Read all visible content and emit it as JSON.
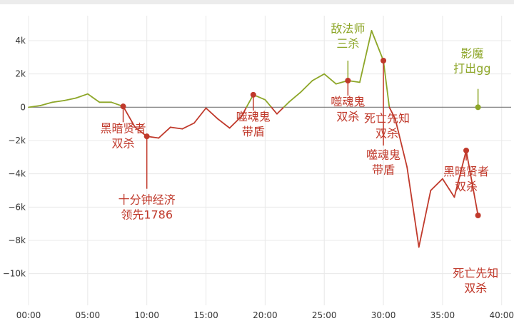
{
  "chart_data": {
    "type": "line",
    "x_unit": "minutes",
    "x_tick_labels": [
      "00:00",
      "05:00",
      "10:00",
      "15:00",
      "20:00",
      "25:00",
      "30:00",
      "35:00",
      "40:00"
    ],
    "x_ticks": [
      0,
      5,
      10,
      15,
      20,
      25,
      30,
      35,
      40
    ],
    "y_tick_labels": [
      "4k",
      "2k",
      "0",
      "−2k",
      "−4k",
      "−6k",
      "−8k",
      "−10k"
    ],
    "y_ticks": [
      4000,
      2000,
      0,
      -2000,
      -4000,
      -6000,
      -8000,
      -10000
    ],
    "xlim": [
      0,
      40.8
    ],
    "ylim": [
      -11900,
      5500
    ],
    "grid": true,
    "colors": {
      "positive": "#8da628",
      "negative": "#c0392b",
      "zero_line": "#777777",
      "grid": "#e8e8e8"
    },
    "series": [
      {
        "values_x": [
          0,
          1,
          2,
          3,
          4,
          5,
          6,
          7,
          8,
          9,
          10,
          11,
          12,
          13,
          14,
          15,
          16,
          17,
          18,
          19,
          20,
          21,
          22,
          23,
          24,
          25,
          26,
          27,
          28,
          29,
          30,
          30.5,
          31,
          32,
          33,
          34,
          35,
          36,
          37,
          38
        ],
        "values_y": [
          0,
          100,
          300,
          400,
          550,
          800,
          300,
          300,
          50,
          -1200,
          -1750,
          -1850,
          -1200,
          -1300,
          -950,
          -50,
          -700,
          -1250,
          -550,
          750,
          450,
          -400,
          300,
          900,
          1600,
          2000,
          1400,
          1600,
          1500,
          4600,
          2800,
          0,
          -700,
          -3600,
          -8400,
          -5000,
          -4300,
          -5400,
          -2600,
          -6500
        ]
      }
    ],
    "markers": [
      {
        "x": 8,
        "y": 50,
        "color": "#c0392b"
      },
      {
        "x": 10,
        "y": -1750,
        "color": "#c0392b"
      },
      {
        "x": 19,
        "y": 750,
        "color": "#c0392b"
      },
      {
        "x": 27,
        "y": 1600,
        "color": "#c0392b"
      },
      {
        "x": 30,
        "y": 2800,
        "color": "#c0392b"
      },
      {
        "x": 37,
        "y": -2600,
        "color": "#c0392b"
      },
      {
        "x": 38,
        "y": -6500,
        "color": "#c0392b"
      },
      {
        "x": 38,
        "y": 0,
        "color": "#8da628"
      }
    ],
    "annotations": [
      {
        "x": 8,
        "y": 50,
        "lines": [
          "黑暗贤者",
          "双杀"
        ],
        "color": "#c0392b",
        "label_x": 8,
        "label_y": -1500,
        "leader_y": -900
      },
      {
        "x": 10,
        "y": -1750,
        "lines": [
          "十分钟经济",
          "领先1786"
        ],
        "color": "#c0392b",
        "label_x": 10,
        "label_y": -5800,
        "leader_y": -4900
      },
      {
        "x": 19,
        "y": 750,
        "lines": [
          "噬魂鬼",
          "带盾"
        ],
        "color": "#c0392b",
        "label_x": 19,
        "label_y": -800,
        "leader_y": -200
      },
      {
        "x": 27,
        "y": 1600,
        "lines": [
          "敌法师",
          "三杀"
        ],
        "color": "#8da628",
        "label_x": 27,
        "label_y": 4500,
        "leader_y": 2800
      },
      {
        "x": 27,
        "y": 1600,
        "lines": [
          "噬魂鬼",
          "双杀"
        ],
        "color": "#c0392b",
        "label_x": 27,
        "label_y": 100,
        "leader_y": 700
      },
      {
        "x": 30,
        "y": 2800,
        "lines": [
          "死亡先知",
          "双杀"
        ],
        "color": "#c0392b",
        "label_x": 30.3,
        "label_y": -900,
        "leader_y": -9999
      },
      {
        "x": 30,
        "y": 2800,
        "lines": [
          "噬魂鬼",
          "带盾"
        ],
        "color": "#c0392b",
        "label_x": 30,
        "label_y": -3100,
        "leader_y": -2300
      },
      {
        "x": 37,
        "y": -2600,
        "lines": [
          "黑暗贤者",
          "双杀"
        ],
        "color": "#c0392b",
        "label_x": 37,
        "label_y": -4100,
        "leader_y": -3200
      },
      {
        "x": 38,
        "y": -6500,
        "lines": [
          "死亡先知",
          "双杀"
        ],
        "color": "#c0392b",
        "label_x": 37.8,
        "label_y": -10200,
        "leader_y": -9700
      },
      {
        "x": 38,
        "y": 0,
        "lines": [
          "影魔",
          "打出gg"
        ],
        "color": "#8da628",
        "label_x": 37.5,
        "label_y": 3000,
        "leader_y": 1100
      }
    ]
  }
}
